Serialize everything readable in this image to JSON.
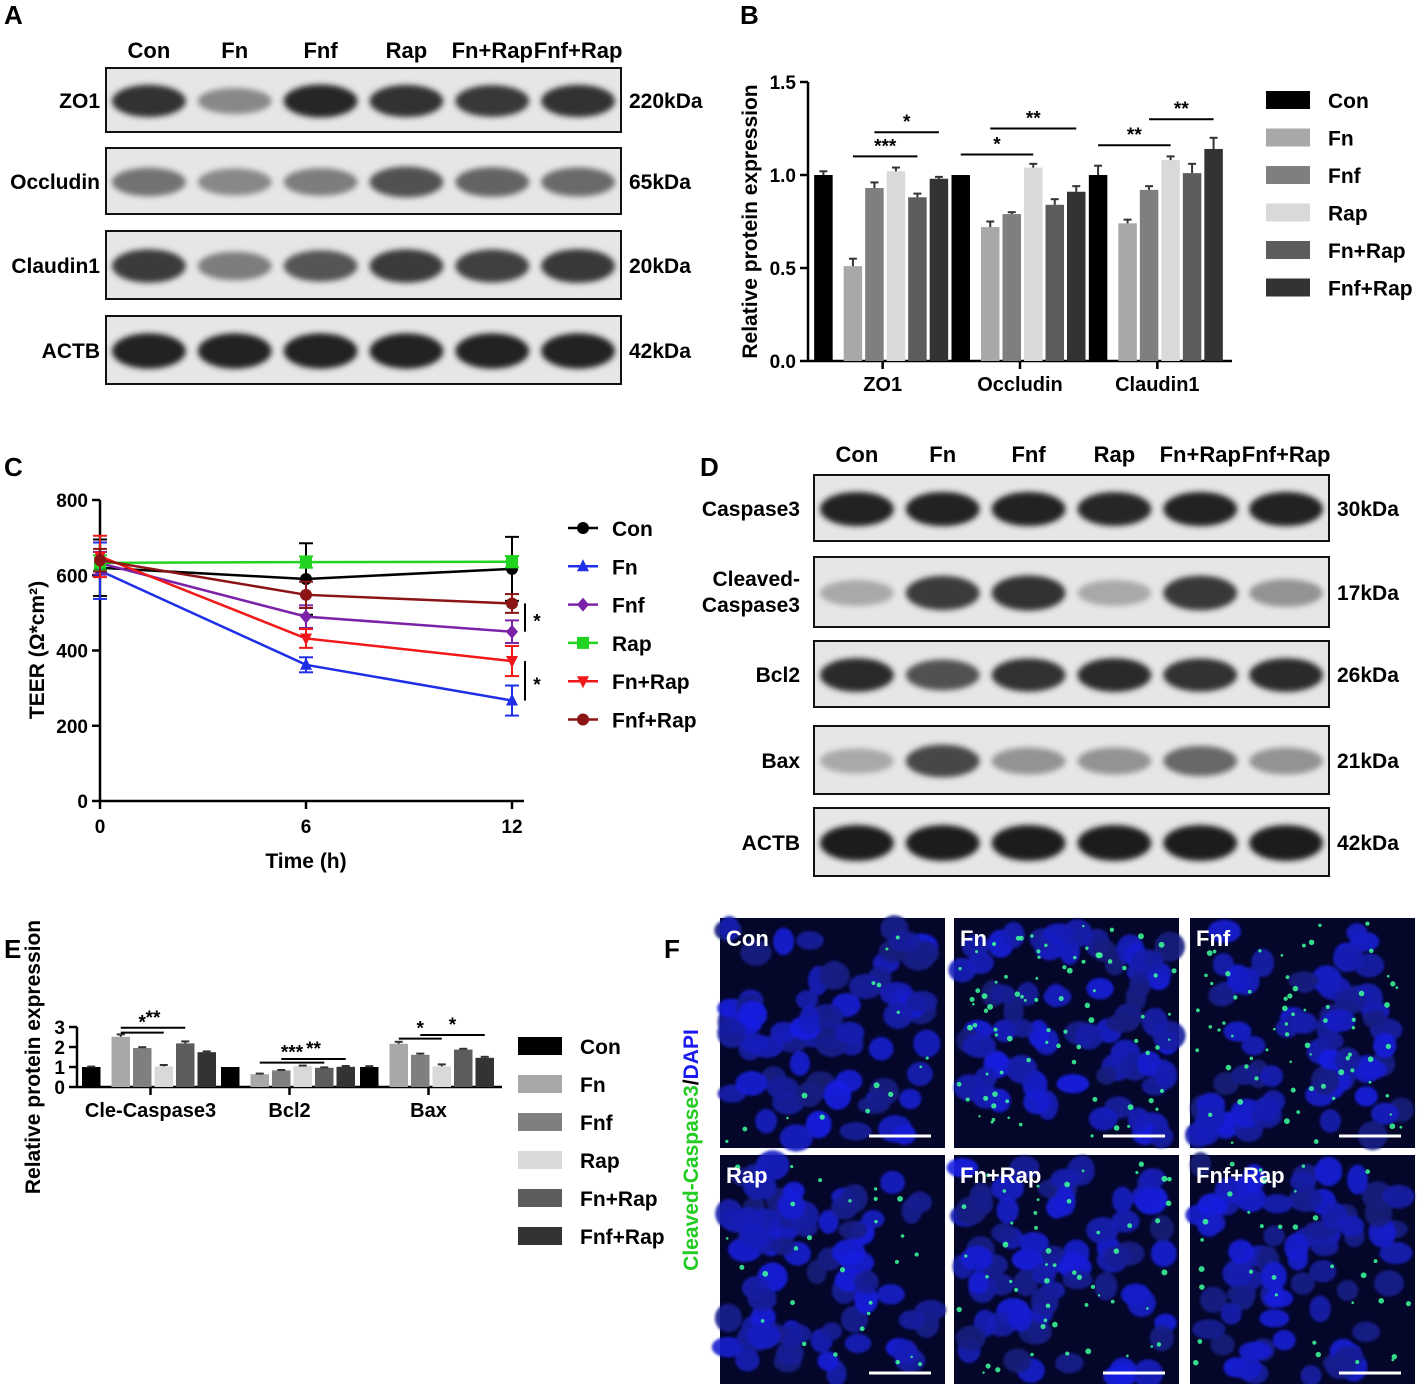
{
  "groups": [
    "Con",
    "Fn",
    "Fnf",
    "Rap",
    "Fn+Rap",
    "Fnf+Rap"
  ],
  "bar_colors": [
    "#000000",
    "#a8a8ab",
    "#7f7f7f",
    "#d9d9d9",
    "#5c5c5c",
    "#333333"
  ],
  "panelA": {
    "letter": "A",
    "rows": [
      {
        "label": "ZO1",
        "kda": "220kDa",
        "intensity": [
          0.85,
          0.45,
          0.9,
          0.85,
          0.82,
          0.85
        ]
      },
      {
        "label": "Occludin",
        "kda": "65kDa",
        "intensity": [
          0.55,
          0.45,
          0.5,
          0.7,
          0.62,
          0.58
        ]
      },
      {
        "label": "Claudin1",
        "kda": "20kDa",
        "intensity": [
          0.8,
          0.5,
          0.68,
          0.8,
          0.78,
          0.82
        ]
      },
      {
        "label": "ACTB",
        "kda": "42kDa",
        "intensity": [
          0.92,
          0.92,
          0.92,
          0.92,
          0.92,
          0.92
        ]
      }
    ]
  },
  "panelD": {
    "letter": "D",
    "rows": [
      {
        "label": "Caspase3",
        "label2": "",
        "kda": "30kDa",
        "intensity": [
          0.92,
          0.92,
          0.92,
          0.9,
          0.92,
          0.92
        ]
      },
      {
        "label": "Cleaved-",
        "label2": "Caspase3",
        "kda": "17kDa",
        "intensity": [
          0.3,
          0.8,
          0.85,
          0.3,
          0.82,
          0.4
        ]
      },
      {
        "label": "Bcl2",
        "label2": "",
        "kda": "26kDa",
        "intensity": [
          0.88,
          0.7,
          0.85,
          0.88,
          0.85,
          0.88
        ]
      },
      {
        "label": "Bax",
        "label2": "",
        "kda": "21kDa",
        "intensity": [
          0.3,
          0.75,
          0.4,
          0.4,
          0.6,
          0.4
        ]
      },
      {
        "label": "ACTB",
        "label2": "",
        "kda": "42kDa",
        "intensity": [
          0.95,
          0.95,
          0.95,
          0.95,
          0.95,
          0.95
        ]
      }
    ]
  },
  "panelF": {
    "letter": "F",
    "ylabel_green": "Cleaved-Caspase3",
    "ylabel_sep": "/",
    "ylabel_blue": "DAPI",
    "panels": [
      "Con",
      "Fn",
      "Fnf",
      "Rap",
      "Fn+Rap",
      "Fnf+Rap"
    ],
    "green_density": [
      0.1,
      0.9,
      0.75,
      0.25,
      0.55,
      0.3
    ]
  },
  "chart_data": [
    {
      "panel": "B",
      "type": "bar",
      "ylabel": "Relative protein expression",
      "ylim": [
        0,
        1.5
      ],
      "yticks": [
        0.0,
        0.5,
        1.0,
        1.5
      ],
      "ytick_labels": [
        "0.0",
        "0.5",
        "1.0",
        "1.5"
      ],
      "categories": [
        "ZO1",
        "Occludin",
        "Claudin1"
      ],
      "series": [
        {
          "name": "Con",
          "values": [
            1.0,
            1.0,
            1.0
          ],
          "errors": [
            0.02,
            0.0,
            0.05
          ]
        },
        {
          "name": "Fn",
          "values": [
            0.51,
            0.72,
            0.74
          ],
          "errors": [
            0.04,
            0.03,
            0.02
          ]
        },
        {
          "name": "Fnf",
          "values": [
            0.93,
            0.79,
            0.92
          ],
          "errors": [
            0.03,
            0.01,
            0.02
          ]
        },
        {
          "name": "Rap",
          "values": [
            1.02,
            1.04,
            1.08
          ],
          "errors": [
            0.02,
            0.02,
            0.02
          ]
        },
        {
          "name": "Fn+Rap",
          "values": [
            0.88,
            0.84,
            1.01
          ],
          "errors": [
            0.02,
            0.03,
            0.05
          ]
        },
        {
          "name": "Fnf+Rap",
          "values": [
            0.98,
            0.91,
            1.14
          ],
          "errors": [
            0.01,
            0.03,
            0.06
          ]
        }
      ],
      "significance": [
        {
          "category": 0,
          "from": 1,
          "to": 4,
          "label": "***",
          "level": 1.1
        },
        {
          "category": 0,
          "from": 2,
          "to": 5,
          "label": "*",
          "level": 1.23
        },
        {
          "category": 1,
          "from": 0,
          "to": 3,
          "label": "*",
          "level": 1.11
        },
        {
          "category": 1,
          "from": 1,
          "to": 5,
          "label": "**",
          "level": 1.25
        },
        {
          "category": 2,
          "from": 0,
          "to": 3,
          "label": "**",
          "level": 1.16
        },
        {
          "category": 2,
          "from": 2,
          "to": 5,
          "label": "**",
          "level": 1.3
        }
      ]
    },
    {
      "panel": "C",
      "type": "line",
      "xlabel": "Time (h)",
      "ylabel": "TEER (Ω*cm²)",
      "x": [
        0,
        6,
        12
      ],
      "xticks": [
        "0",
        "6",
        "12"
      ],
      "xlim": [
        0,
        12
      ],
      "ylim": [
        0,
        800
      ],
      "yticks": [
        "0",
        "200",
        "400",
        "600",
        "800"
      ],
      "series": [
        {
          "name": "Con",
          "color": "#000000",
          "marker": "circle",
          "values": [
            620,
            590,
            617
          ],
          "errors": [
            75,
            95,
            85
          ]
        },
        {
          "name": "Fn",
          "color": "#1f2fe8",
          "marker": "triangle-up",
          "values": [
            612,
            362,
            267
          ],
          "errors": [
            75,
            20,
            40
          ]
        },
        {
          "name": "Fnf",
          "color": "#7b22a8",
          "marker": "diamond",
          "values": [
            632,
            490,
            450
          ],
          "errors": [
            30,
            30,
            30
          ]
        },
        {
          "name": "Rap",
          "color": "#22d422",
          "marker": "square",
          "values": [
            633,
            635,
            636
          ],
          "errors": [
            20,
            15,
            15
          ]
        },
        {
          "name": "Fn+Rap",
          "color": "#f01818",
          "marker": "triangle-down",
          "values": [
            650,
            432,
            372
          ],
          "errors": [
            55,
            25,
            40
          ]
        },
        {
          "name": "Fnf+Rap",
          "color": "#8b1414",
          "marker": "circle",
          "values": [
            640,
            548,
            525
          ],
          "errors": [
            30,
            35,
            25
          ]
        }
      ],
      "significance": [
        {
          "label": "*",
          "y_from": 450,
          "y_to": 525
        },
        {
          "label": "*",
          "y_from": 267,
          "y_to": 372
        }
      ]
    },
    {
      "panel": "E",
      "type": "bar",
      "ylabel": "Relative protein expression",
      "ylim": [
        0,
        3
      ],
      "yticks": [
        0,
        1,
        2,
        3
      ],
      "ytick_labels": [
        "0",
        "1",
        "2",
        "3"
      ],
      "categories": [
        "Cle-Caspase3",
        "Bcl2",
        "Bax"
      ],
      "series": [
        {
          "name": "Con",
          "values": [
            1.0,
            1.0,
            1.0
          ],
          "errors": [
            0.02,
            0.0,
            0.04
          ]
        },
        {
          "name": "Fn",
          "values": [
            2.51,
            0.64,
            2.16
          ],
          "errors": [
            0.12,
            0.03,
            0.1
          ]
        },
        {
          "name": "Fnf",
          "values": [
            1.95,
            0.83,
            1.61
          ],
          "errors": [
            0.04,
            0.02,
            0.06
          ]
        },
        {
          "name": "Rap",
          "values": [
            1.03,
            1.04,
            1.03
          ],
          "errors": [
            0.07,
            0.03,
            0.1
          ]
        },
        {
          "name": "Fn+Rap",
          "values": [
            2.18,
            0.96,
            1.87
          ],
          "errors": [
            0.1,
            0.02,
            0.04
          ]
        },
        {
          "name": "Fnf+Rap",
          "values": [
            1.74,
            1.01,
            1.46
          ],
          "errors": [
            0.04,
            0.04,
            0.05
          ]
        }
      ],
      "significance": [
        {
          "category": 0,
          "from": 1,
          "to": 3,
          "label": "*",
          "level": 2.72
        },
        {
          "category": 0,
          "from": 1,
          "to": 4,
          "label": "**",
          "level": 2.96
        },
        {
          "category": 1,
          "from": 1,
          "to": 4,
          "label": "***",
          "level": 1.22
        },
        {
          "category": 1,
          "from": 2,
          "to": 5,
          "label": "**",
          "level": 1.4
        },
        {
          "category": 2,
          "from": 1,
          "to": 3,
          "label": "*",
          "level": 2.42
        },
        {
          "category": 2,
          "from": 2,
          "to": 5,
          "label": "*",
          "level": 2.6
        }
      ]
    }
  ]
}
